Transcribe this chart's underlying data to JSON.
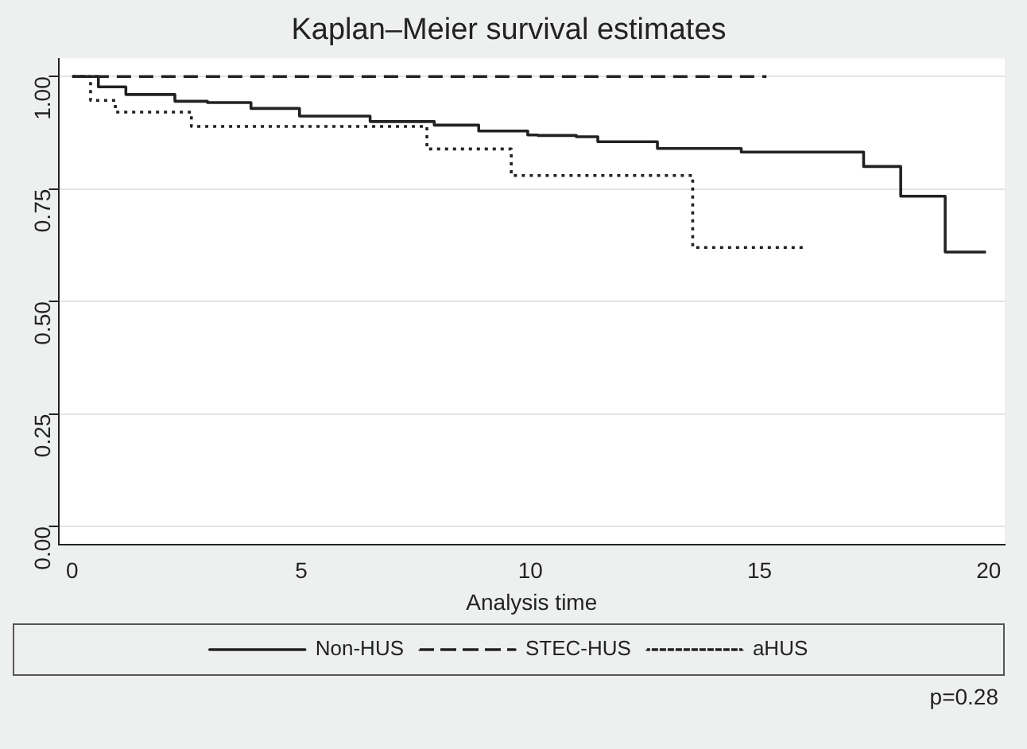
{
  "chart_data": {
    "type": "step",
    "title": "Kaplan–Meier survival estimates",
    "xlabel": "Analysis time",
    "marker": "none",
    "grid": "y",
    "legend": "bottom",
    "xlim": [
      -0.3,
      20.35
    ],
    "ylim": [
      -0.04,
      1.04
    ],
    "xticks": [
      0,
      5,
      10,
      15,
      20
    ],
    "yticks": [
      {
        "value": 0,
        "label": "0.00"
      },
      {
        "value": 0.25,
        "label": "0.25"
      },
      {
        "value": 0.5,
        "label": "0.50"
      },
      {
        "value": 0.75,
        "label": "0.75"
      },
      {
        "value": 1,
        "label": "1.00"
      }
    ],
    "series": [
      {
        "name": "Non-HUS",
        "color": "#222222",
        "line_style": "solid",
        "x": [
          0,
          0.57,
          1.17,
          2.24,
          2.95,
          3.9,
          4.96,
          6.5,
          7.9,
          8.87,
          9.94,
          10.16,
          11,
          11.47,
          12.77,
          14.6,
          17.27,
          18.08,
          19.05,
          19.94
        ],
        "values": [
          1,
          0.977,
          0.96,
          0.945,
          0.942,
          0.929,
          0.912,
          0.9,
          0.892,
          0.879,
          0.87,
          0.869,
          0.866,
          0.855,
          0.84,
          0.832,
          0.8,
          0.734,
          0.61,
          0.61
        ]
      },
      {
        "name": "STEC-HUS",
        "color": "#222222",
        "line_style": "dashed",
        "x": [
          0,
          15.15
        ],
        "values": [
          1,
          1
        ]
      },
      {
        "name": "aHUS",
        "color": "#222222",
        "line_style": "dotted",
        "x": [
          0,
          0.4,
          0.94,
          2.6,
          7.74,
          9.58,
          13.54,
          15.97
        ],
        "values": [
          1,
          0.947,
          0.921,
          0.889,
          0.839,
          0.78,
          0.62,
          0.62
        ]
      }
    ],
    "annotations": [
      "p=0.28"
    ]
  }
}
